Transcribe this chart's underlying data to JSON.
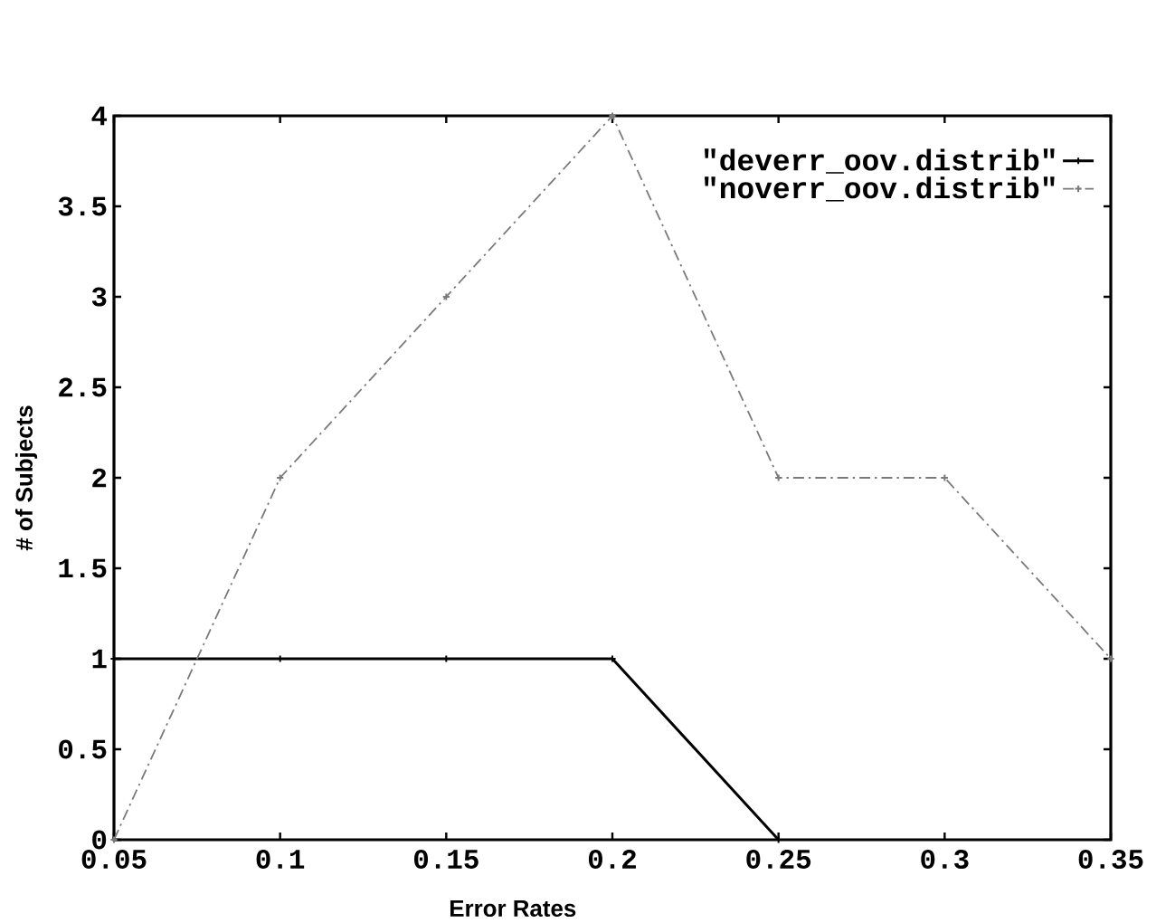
{
  "chart_data": {
    "type": "line",
    "xlabel": "Error Rates",
    "ylabel": "# of Subjects",
    "x": [
      0.05,
      0.1,
      0.15,
      0.2,
      0.25,
      0.3,
      0.35
    ],
    "series": [
      {
        "name": "\"deverr_oov.distrib\"",
        "color": "#000000",
        "line_style": "solid",
        "values": [
          1,
          1,
          1,
          1,
          0,
          null,
          null
        ]
      },
      {
        "name": "\"noverr_oov.distrib\"",
        "color": "#7a7a7a",
        "line_style": "dashed",
        "values": [
          0,
          2,
          3,
          4,
          2,
          2,
          1
        ]
      }
    ],
    "xlim": [
      0.05,
      0.35
    ],
    "ylim": [
      0,
      4
    ],
    "xticks": [
      0.05,
      0.1,
      0.15,
      0.2,
      0.25,
      0.3,
      0.35
    ],
    "yticks": [
      0,
      0.5,
      1,
      1.5,
      2,
      2.5,
      3,
      3.5,
      4
    ],
    "legend": "top right",
    "marker": "cross"
  }
}
